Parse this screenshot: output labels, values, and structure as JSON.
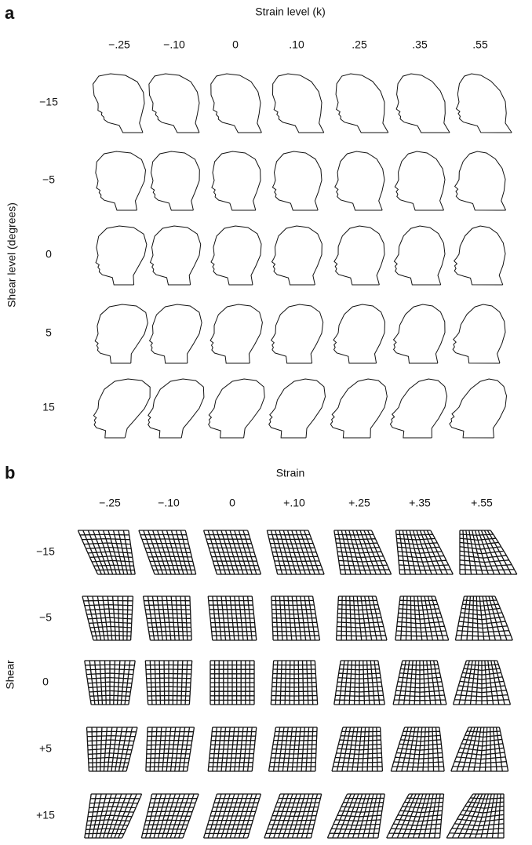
{
  "panel_a": {
    "label": "a",
    "title": "Strain level (k)",
    "y_label": "Shear level (degrees)",
    "columns": [
      "−.25",
      "−.10",
      "0",
      ".10",
      ".25",
      ".35",
      ".55"
    ],
    "rows": [
      "−15",
      "−5",
      "0",
      "5",
      "15"
    ]
  },
  "panel_b": {
    "label": "b",
    "title": "Strain",
    "y_label": "Shear",
    "columns": [
      "−.25",
      "−.10",
      "0",
      "+.10",
      "+.25",
      "+.35",
      "+.55"
    ],
    "rows": [
      "−15",
      "−5",
      "0",
      "+5",
      "+15"
    ]
  }
}
